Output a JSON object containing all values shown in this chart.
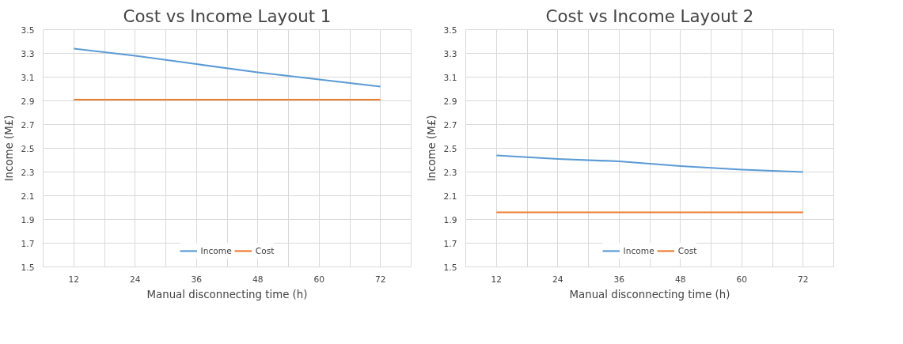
{
  "chart_data": [
    {
      "type": "line",
      "title": "Cost vs Income Layout 1",
      "xlabel": "Manual disconnecting time (h)",
      "ylabel": "Income (M£)",
      "x": [
        12,
        24,
        36,
        48,
        60,
        72
      ],
      "series": [
        {
          "name": "Income",
          "color": "#5b9bd5",
          "values": [
            3.34,
            3.28,
            3.21,
            3.14,
            3.08,
            3.02
          ]
        },
        {
          "name": "Cost",
          "color": "#ed7d31",
          "values": [
            2.91,
            2.91,
            2.91,
            2.91,
            2.91,
            2.91
          ]
        }
      ],
      "xlim": [
        6,
        78
      ],
      "xticks": [
        12,
        {
          "value": 18,
          "label": null
        },
        24,
        {
          "value": 30,
          "label": null
        },
        36,
        {
          "value": 42,
          "label": null
        },
        48,
        {
          "value": 54,
          "label": null
        },
        60,
        {
          "value": 66,
          "label": null
        },
        72
      ],
      "ylim": [
        1.5,
        3.5
      ],
      "yticks": [
        1.5,
        1.7,
        1.9,
        2.1,
        2.3,
        2.5,
        2.7,
        2.9,
        3.1,
        3.3,
        3.5
      ],
      "grid": true,
      "legend": "bottom",
      "marker": "none",
      "line_style": "solid"
    },
    {
      "type": "line",
      "title": "Cost vs Income Layout 2",
      "xlabel": "Manual disconnecting time (h)",
      "ylabel": "Income (M£)",
      "x": [
        12,
        24,
        36,
        48,
        60,
        72
      ],
      "series": [
        {
          "name": "Income",
          "color": "#5b9bd5",
          "values": [
            2.44,
            2.41,
            2.39,
            2.35,
            2.32,
            2.3
          ]
        },
        {
          "name": "Cost",
          "color": "#ed7d31",
          "values": [
            1.96,
            1.96,
            1.96,
            1.96,
            1.96,
            1.96
          ]
        }
      ],
      "xlim": [
        6,
        78
      ],
      "xticks": [
        12,
        {
          "value": 18,
          "label": null
        },
        24,
        {
          "value": 30,
          "label": null
        },
        36,
        {
          "value": 42,
          "label": null
        },
        48,
        {
          "value": 54,
          "label": null
        },
        60,
        {
          "value": 66,
          "label": null
        },
        72
      ],
      "ylim": [
        1.5,
        3.5
      ],
      "yticks": [
        1.5,
        1.7,
        1.9,
        2.1,
        2.3,
        2.5,
        2.7,
        2.9,
        3.1,
        3.3,
        3.5
      ],
      "grid": true,
      "legend": "bottom",
      "marker": "none",
      "line_style": "solid"
    }
  ]
}
